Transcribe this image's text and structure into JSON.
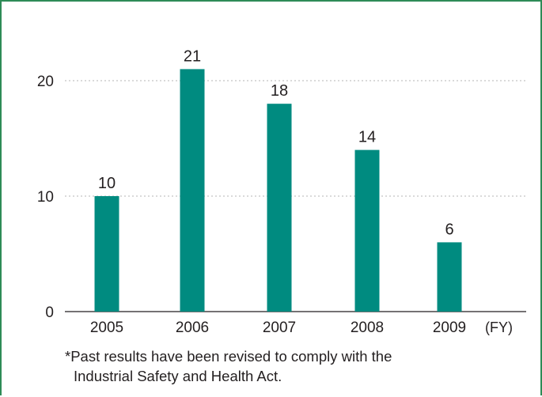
{
  "chart_data": {
    "type": "bar",
    "categories": [
      "2005",
      "2006",
      "2007",
      "2008",
      "2009"
    ],
    "values": [
      10,
      21,
      18,
      14,
      6
    ],
    "x_unit_label": "(FY)",
    "yticks": [
      0,
      10,
      20
    ],
    "ylim": [
      0,
      20
    ],
    "grid": "dotted horizontal at 10 and 20",
    "bar_color": "#008b80",
    "note_lines": [
      "*Past results have been revised to comply with the",
      "Industrial Safety and Health Act."
    ]
  }
}
